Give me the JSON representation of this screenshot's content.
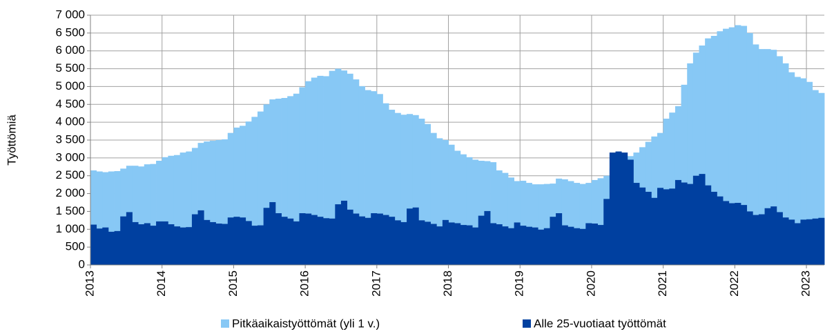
{
  "chart_data": {
    "type": "step-area",
    "y_label": "Työttömiä",
    "categories": [
      "2013",
      null,
      null,
      null,
      null,
      null,
      null,
      null,
      null,
      null,
      null,
      null,
      "2014",
      null,
      null,
      null,
      null,
      null,
      null,
      null,
      null,
      null,
      null,
      null,
      "2015",
      null,
      null,
      null,
      null,
      null,
      null,
      null,
      null,
      null,
      null,
      null,
      "2016",
      null,
      null,
      null,
      null,
      null,
      null,
      null,
      null,
      null,
      null,
      null,
      "2017",
      null,
      null,
      null,
      null,
      null,
      null,
      null,
      null,
      null,
      null,
      null,
      "2018",
      null,
      null,
      null,
      null,
      null,
      null,
      null,
      null,
      null,
      null,
      null,
      "2019",
      null,
      null,
      null,
      null,
      null,
      null,
      null,
      null,
      null,
      null,
      null,
      "2020",
      null,
      null,
      null,
      null,
      null,
      null,
      null,
      null,
      null,
      null,
      null,
      "2021",
      null,
      null,
      null,
      null,
      null,
      null,
      null,
      null,
      null,
      null,
      null,
      "2022",
      null,
      null,
      null,
      null,
      null,
      null,
      null,
      null,
      null,
      null,
      null,
      "2023",
      null,
      null
    ],
    "series": [
      {
        "name": "Pitkäaikaistyöttömät (yli 1 v.)",
        "color": "#87c8f5",
        "values": [
          2650,
          2620,
          2600,
          2620,
          2630,
          2700,
          2780,
          2780,
          2760,
          2820,
          2830,
          2920,
          3020,
          3060,
          3080,
          3150,
          3180,
          3280,
          3420,
          3460,
          3480,
          3500,
          3520,
          3700,
          3850,
          3900,
          4020,
          4150,
          4300,
          4500,
          4640,
          4660,
          4680,
          4730,
          4800,
          4980,
          5150,
          5250,
          5300,
          5290,
          5440,
          5500,
          5450,
          5360,
          5200,
          5010,
          4900,
          4870,
          4790,
          4530,
          4350,
          4260,
          4210,
          4230,
          4200,
          4100,
          3950,
          3700,
          3550,
          3500,
          3370,
          3200,
          3100,
          3020,
          2950,
          2920,
          2910,
          2880,
          2650,
          2580,
          2450,
          2350,
          2360,
          2300,
          2260,
          2260,
          2270,
          2280,
          2420,
          2400,
          2350,
          2300,
          2270,
          2300,
          2380,
          2430,
          2500,
          2700,
          2850,
          2950,
          3050,
          3150,
          3300,
          3450,
          3600,
          3700,
          4100,
          4270,
          4450,
          5050,
          5650,
          5950,
          6150,
          6350,
          6420,
          6550,
          6620,
          6660,
          6720,
          6700,
          6500,
          6180,
          6050,
          6050,
          6030,
          5850,
          5650,
          5400,
          5270,
          5230,
          5130,
          4900,
          4820
        ]
      },
      {
        "name": "Alle 25-vuotiaat työttömät",
        "color": "#0040a0",
        "values": [
          1130,
          1020,
          1050,
          930,
          950,
          1360,
          1480,
          1200,
          1140,
          1170,
          1100,
          1220,
          1220,
          1140,
          1080,
          1050,
          1060,
          1420,
          1530,
          1260,
          1200,
          1160,
          1150,
          1330,
          1350,
          1330,
          1230,
          1100,
          1110,
          1600,
          1760,
          1450,
          1350,
          1300,
          1220,
          1450,
          1440,
          1400,
          1350,
          1310,
          1300,
          1700,
          1800,
          1550,
          1440,
          1360,
          1320,
          1450,
          1440,
          1400,
          1350,
          1250,
          1200,
          1580,
          1610,
          1250,
          1210,
          1150,
          1080,
          1260,
          1190,
          1170,
          1120,
          1110,
          1050,
          1380,
          1510,
          1170,
          1140,
          1080,
          1030,
          1190,
          1100,
          1070,
          1050,
          990,
          1030,
          1350,
          1450,
          1110,
          1070,
          1030,
          1010,
          1170,
          1160,
          1120,
          1850,
          3150,
          3180,
          3150,
          2950,
          2300,
          2170,
          2050,
          1880,
          2160,
          2120,
          2140,
          2380,
          2310,
          2270,
          2500,
          2550,
          2230,
          2050,
          1920,
          1790,
          1730,
          1740,
          1680,
          1500,
          1400,
          1420,
          1590,
          1640,
          1480,
          1330,
          1270,
          1170,
          1270,
          1280,
          1300,
          1320
        ]
      }
    ],
    "ylim": [
      0,
      7000
    ],
    "yticks": [
      0,
      500,
      {
        "value": 1000,
        "label": "1 000"
      },
      {
        "value": 1500,
        "label": "1 500"
      },
      {
        "value": 2000,
        "label": "2 000"
      },
      {
        "value": 2500,
        "label": "2 500"
      },
      {
        "value": 3000,
        "label": "3 000"
      },
      {
        "value": 3500,
        "label": "3 500"
      },
      {
        "value": 4000,
        "label": "4 000"
      },
      {
        "value": 4500,
        "label": "4 500"
      },
      {
        "value": 5000,
        "label": "5 000"
      },
      {
        "value": 5500,
        "label": "5 500"
      },
      {
        "value": 6000,
        "label": "6 000"
      },
      {
        "value": 6500,
        "label": "6 500"
      },
      {
        "value": 7000,
        "label": "7 000"
      }
    ],
    "grid": true
  }
}
